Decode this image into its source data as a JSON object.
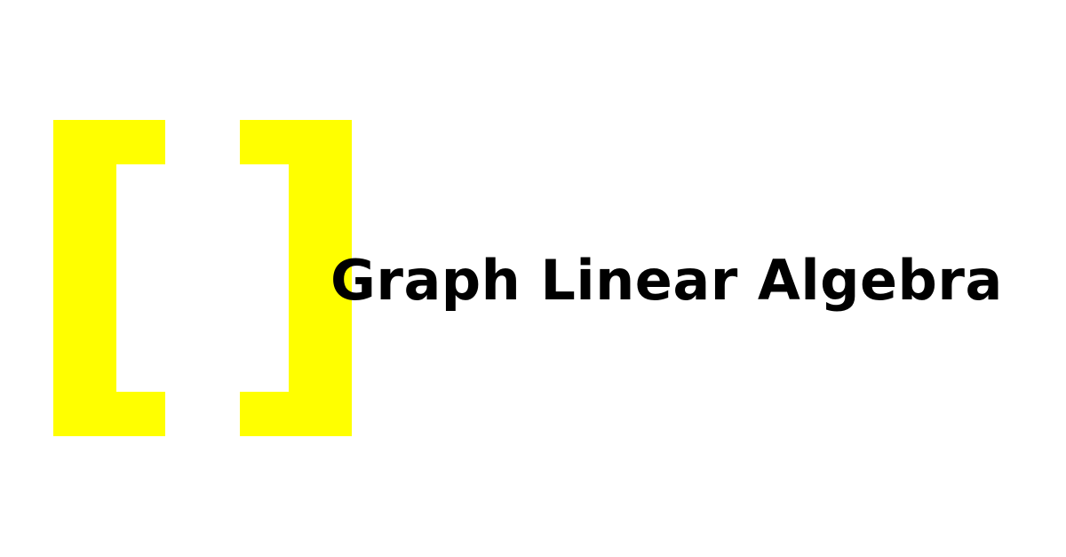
{
  "title": "Graph Linear Algebra",
  "logo": {
    "icon": "bracket-matrix-logo",
    "color": "#ffff00"
  },
  "colors": {
    "background": "#ffffff",
    "text": "#000000",
    "accent": "#ffff00"
  }
}
